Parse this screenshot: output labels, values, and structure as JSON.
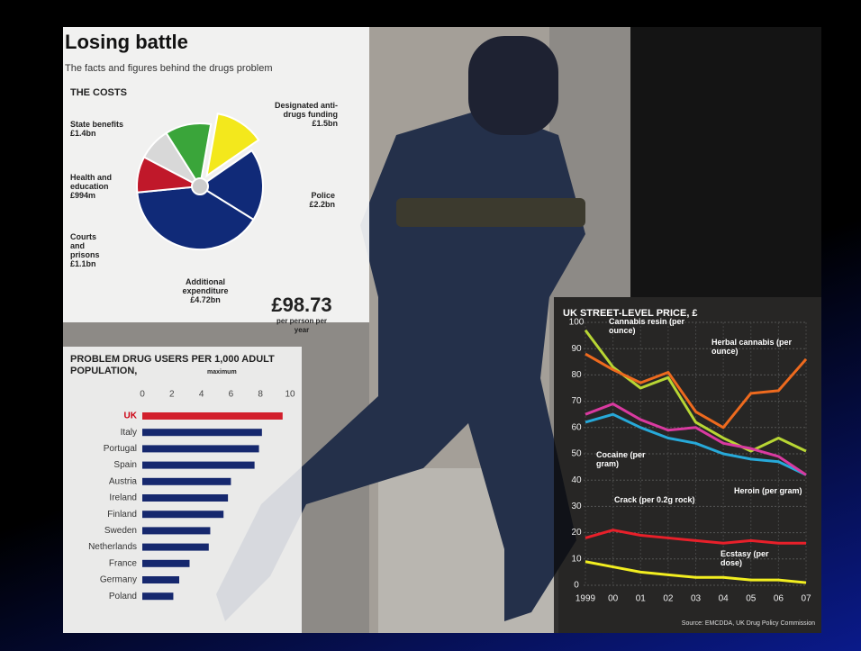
{
  "header": {
    "title": "Losing battle",
    "subtitle": "The facts and figures behind the drugs problem"
  },
  "source": "Source: EMCDDA, UK Drug Policy Commission",
  "chart_data": [
    {
      "type": "pie",
      "title": "THE COSTS",
      "categories": [
        "Designated anti-drugs funding",
        "Police",
        "Additional expenditure",
        "Courts and prisons",
        "Health and education",
        "State benefits"
      ],
      "values": [
        1.5,
        2.2,
        4.72,
        1.1,
        0.994,
        1.4
      ],
      "value_labels": [
        "£1.5bn",
        "£2.2bn",
        "£4.72bn",
        "£1.1bn",
        "£994m",
        "£1.4bn"
      ],
      "colors": [
        "#f3e81c",
        "#102a78",
        "#102a78",
        "#c0182a",
        "#d8d8d8",
        "#3aa53a"
      ],
      "explode": [
        true,
        false,
        false,
        false,
        false,
        false
      ],
      "annotation": "£98.73",
      "annotation_note": "per person per year"
    },
    {
      "type": "hbar",
      "title": "PROBLEM DRUG USERS PER 1,000 ADULT POPULATION,",
      "subtitle": "maximum",
      "categories": [
        "UK",
        "Italy",
        "Portugal",
        "Spain",
        "Austria",
        "Ireland",
        "Finland",
        "Sweden",
        "Netherlands",
        "France",
        "Germany",
        "Poland"
      ],
      "values": [
        9.5,
        8.1,
        7.9,
        7.6,
        6.0,
        5.8,
        5.5,
        4.6,
        4.5,
        3.2,
        2.5,
        2.1
      ],
      "colors": [
        "#d21f2c",
        "#16286e",
        "#16286e",
        "#16286e",
        "#16286e",
        "#16286e",
        "#16286e",
        "#16286e",
        "#16286e",
        "#16286e",
        "#16286e",
        "#16286e"
      ],
      "xlim": [
        0,
        10
      ],
      "xticks": [
        0,
        2,
        4,
        6,
        8,
        10
      ]
    },
    {
      "type": "line",
      "title": "UK STREET-LEVEL PRICE, £",
      "categories": [
        "1999",
        "00",
        "01",
        "02",
        "03",
        "04",
        "05",
        "06",
        "07"
      ],
      "ylim": [
        0,
        100
      ],
      "yticks": [
        0,
        10,
        20,
        30,
        40,
        50,
        60,
        70,
        80,
        90,
        100
      ],
      "grid": true,
      "series": [
        {
          "name": "Cannabis resin (per ounce)",
          "color": "#b8d634",
          "values": [
            97,
            83,
            75,
            79,
            62,
            56,
            51,
            56,
            51
          ]
        },
        {
          "name": "Herbal cannabis (per ounce)",
          "color": "#ee6a1e",
          "values": [
            88,
            82,
            77,
            81,
            66,
            60,
            73,
            74,
            86
          ]
        },
        {
          "name": "Cocaine (per gram)",
          "color": "#27a9d9",
          "values": [
            62,
            65,
            60,
            56,
            54,
            50,
            48,
            47,
            42
          ]
        },
        {
          "name": "Heroin (per gram)",
          "color": "#d93aa0",
          "values": [
            65,
            69,
            63,
            59,
            60,
            54,
            52,
            49,
            42
          ]
        },
        {
          "name": "Crack (per 0.2g rock)",
          "color": "#e8202a",
          "values": [
            18,
            21,
            19,
            18,
            17,
            16,
            17,
            16,
            16
          ]
        },
        {
          "name": "Ecstasy (per dose)",
          "color": "#f2ee20",
          "values": [
            9,
            7,
            5,
            4,
            3,
            3,
            2,
            2,
            1
          ]
        }
      ]
    }
  ]
}
